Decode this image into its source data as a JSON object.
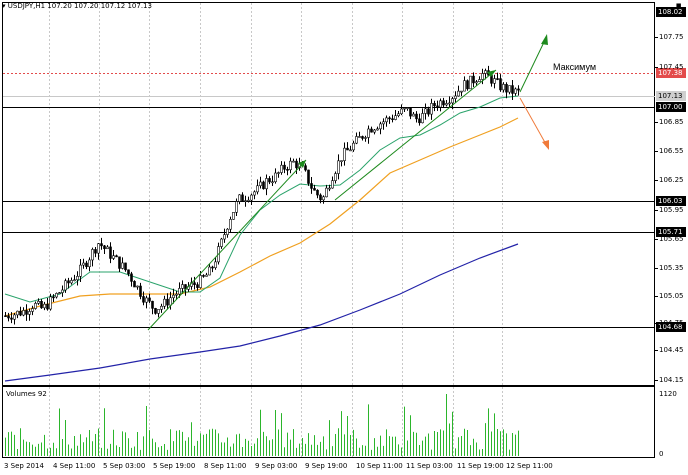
{
  "header": {
    "symbol": "USDJPY,H1",
    "ohlc": "107.20 107.20 107.12 107.13"
  },
  "annotation": "Максимум",
  "volumes_label": "Volumes 92",
  "price_tags": {
    "top": "108.02",
    "resistance": "107.38",
    "current": "107.13",
    "level_107": "107.00",
    "level_106": "106.03",
    "level_105": "105.71",
    "level_104": "104.68"
  },
  "y_ticks": [
    "107.75",
    "107.45",
    "106.85",
    "106.55",
    "106.25",
    "105.95",
    "105.65",
    "105.35",
    "105.05",
    "104.75",
    "104.45",
    "104.15"
  ],
  "vol_ticks": [
    "1120",
    "0"
  ],
  "x_ticks": [
    "3 Sep 2014",
    "4 Sep 11:00",
    "5 Sep 03:00",
    "5 Sep 19:00",
    "8 Sep 11:00",
    "9 Sep 03:00",
    "9 Sep 19:00",
    "10 Sep 11:00",
    "11 Sep 03:00",
    "11 Sep 19:00",
    "12 Sep 11:00"
  ],
  "colors": {
    "ma_fast": "#2aa36b",
    "ma_mid": "#f0a020",
    "ma_slow": "#2323a8",
    "trend": "#1d8a1d",
    "resistance": "#e34b4b",
    "arrow_up": "#1d8a1d",
    "arrow_down": "#f07a3a",
    "volume": "#2bb52b"
  },
  "chart_data": {
    "type": "candlestick",
    "symbol": "USDJPY",
    "timeframe": "H1",
    "ylim": [
      104.05,
      108.02
    ],
    "close_path": [
      104.78,
      104.8,
      104.83,
      104.9,
      104.85,
      104.95,
      105.05,
      105.15,
      105.25,
      105.4,
      105.55,
      105.45,
      105.35,
      105.25,
      105.1,
      104.95,
      104.85,
      104.9,
      105.0,
      105.05,
      105.1,
      105.15,
      105.25,
      105.5,
      105.8,
      106.0,
      106.05,
      106.1,
      106.2,
      106.25,
      106.35,
      106.4,
      106.3,
      106.1,
      106.0,
      106.25,
      106.45,
      106.55,
      106.65,
      106.75,
      106.8,
      106.85,
      106.9,
      106.95,
      106.85,
      106.9,
      107.0,
      107.05,
      107.1,
      107.2,
      107.25,
      107.33,
      107.28,
      107.2,
      107.15,
      107.13
    ],
    "horizontal_levels": [
      108.02,
      107.38,
      107.13,
      107.0,
      106.03,
      105.71,
      104.68
    ],
    "volume_axis": [
      0,
      1120
    ],
    "current_volume": 92
  }
}
